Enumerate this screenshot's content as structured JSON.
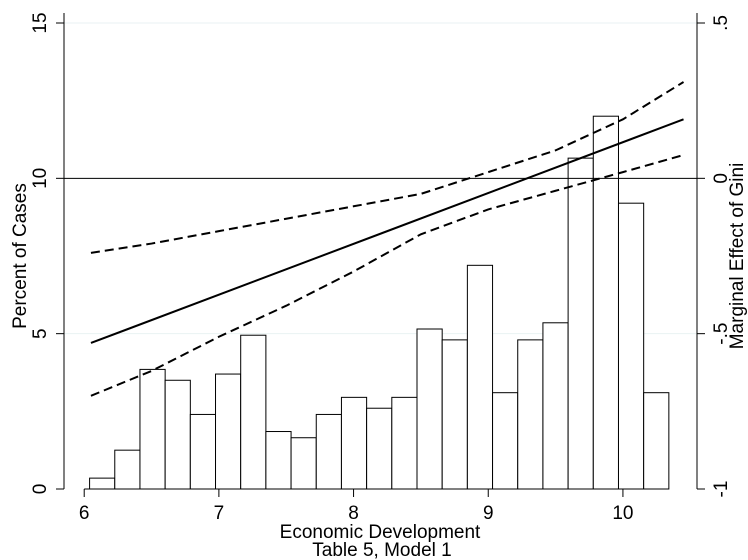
{
  "chart_data": {
    "type": "bar",
    "xlabel": "Economic Development",
    "subtitle": "Table 5, Model 1",
    "ylabel_left": "Percent of Cases",
    "ylabel_right": "Marginal Effect of Gini",
    "xlim": [
      5.85,
      10.55
    ],
    "ylim_left": [
      0,
      15
    ],
    "ylim_right": [
      -1,
      0.5
    ],
    "x_ticks": [
      6,
      7,
      8,
      9,
      10
    ],
    "y_ticks_left": [
      0,
      5,
      10,
      15
    ],
    "y_ticks_right": [
      -1,
      -0.5,
      0,
      0.5
    ],
    "y_tick_labels_right": [
      "-1",
      "-.5",
      "0",
      ".5"
    ],
    "grid": "horizontal",
    "histogram": {
      "bin_width": 0.187,
      "bin_start": 6.04,
      "values": [
        0.35,
        1.25,
        3.85,
        3.5,
        2.4,
        3.7,
        4.95,
        1.85,
        1.65,
        2.4,
        2.95,
        2.6,
        2.95,
        5.15,
        4.8,
        7.2,
        3.1,
        4.8,
        5.35,
        10.65,
        12.0,
        9.2,
        3.1
      ]
    },
    "series": [
      {
        "style": "solid",
        "x": [
          6.05,
          10.45
        ],
        "y": [
          -0.53,
          0.19
        ]
      },
      {
        "style": "dashed",
        "x": [
          6.05,
          6.5,
          7.0,
          7.5,
          8.0,
          8.5,
          9.0,
          9.5,
          10.0,
          10.45
        ],
        "y": [
          -0.24,
          -0.21,
          -0.17,
          -0.13,
          -0.09,
          -0.05,
          0.02,
          0.09,
          0.19,
          0.31
        ]
      },
      {
        "style": "dashed",
        "x": [
          6.05,
          6.5,
          7.0,
          7.5,
          8.0,
          8.5,
          9.0,
          9.5,
          10.0,
          10.45
        ],
        "y": [
          -0.7,
          -0.62,
          -0.51,
          -0.41,
          -0.3,
          -0.18,
          -0.1,
          -0.04,
          0.02,
          0.075
        ]
      }
    ],
    "reference_line": {
      "y_right": 0
    }
  }
}
